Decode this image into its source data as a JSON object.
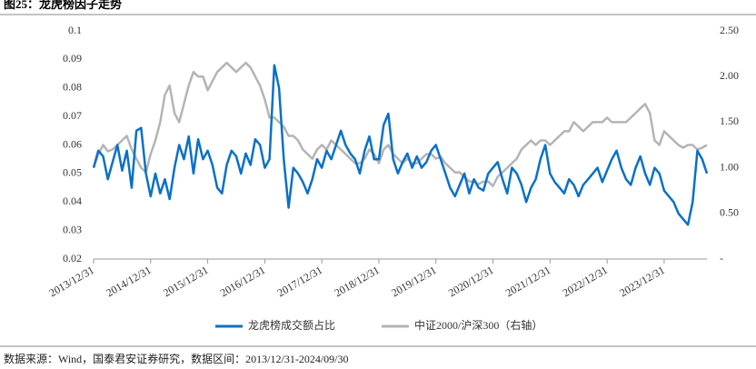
{
  "title": "图25：龙虎榜因子走势",
  "source": "数据来源：Wind，国泰君安证券研究，数据区间：2013/12/31-2024/09/30",
  "chart_data": {
    "type": "line",
    "x": [
      2014,
      2014.083,
      2014.167,
      2014.25,
      2014.333,
      2014.417,
      2014.5,
      2014.583,
      2014.667,
      2014.75,
      2014.833,
      2014.917,
      2015,
      2015.083,
      2015.167,
      2015.25,
      2015.333,
      2015.417,
      2015.5,
      2015.583,
      2015.667,
      2015.75,
      2015.833,
      2015.917,
      2016,
      2016.083,
      2016.167,
      2016.25,
      2016.333,
      2016.417,
      2016.5,
      2016.583,
      2016.667,
      2016.75,
      2016.833,
      2016.917,
      2017,
      2017.083,
      2017.167,
      2017.25,
      2017.333,
      2017.417,
      2017.5,
      2017.583,
      2017.667,
      2017.75,
      2017.833,
      2017.917,
      2018,
      2018.083,
      2018.167,
      2018.25,
      2018.333,
      2018.417,
      2018.5,
      2018.583,
      2018.667,
      2018.75,
      2018.833,
      2018.917,
      2019,
      2019.083,
      2019.167,
      2019.25,
      2019.333,
      2019.417,
      2019.5,
      2019.583,
      2019.667,
      2019.75,
      2019.833,
      2019.917,
      2020,
      2020.083,
      2020.167,
      2020.25,
      2020.333,
      2020.417,
      2020.5,
      2020.583,
      2020.667,
      2020.75,
      2020.833,
      2020.917,
      2021,
      2021.083,
      2021.167,
      2021.25,
      2021.333,
      2021.417,
      2021.5,
      2021.583,
      2021.667,
      2021.75,
      2021.833,
      2021.917,
      2022,
      2022.083,
      2022.167,
      2022.25,
      2022.333,
      2022.417,
      2022.5,
      2022.583,
      2022.667,
      2022.75,
      2022.833,
      2022.917,
      2023,
      2023.083,
      2023.167,
      2023.25,
      2023.333,
      2023.417,
      2023.5,
      2023.583,
      2023.667,
      2023.75,
      2023.833,
      2023.917,
      2024,
      2024.083,
      2024.167,
      2024.25,
      2024.333,
      2024.417,
      2024.5,
      2024.583,
      2024.667,
      2024.75
    ],
    "xlim": [
      2014,
      2024.75
    ],
    "xticks": [
      {
        "value": 2014,
        "label": "2013/12/31"
      },
      {
        "value": 2015,
        "label": "2014/12/31"
      },
      {
        "value": 2016,
        "label": "2015/12/31"
      },
      {
        "value": 2017,
        "label": "2016/12/31"
      },
      {
        "value": 2018,
        "label": "2017/12/31"
      },
      {
        "value": 2019,
        "label": "2018/12/31"
      },
      {
        "value": 2020,
        "label": "2019/12/31"
      },
      {
        "value": 2021,
        "label": "2020/12/31"
      },
      {
        "value": 2022,
        "label": "2021/12/31"
      },
      {
        "value": 2023,
        "label": "2022/12/31"
      },
      {
        "value": 2024,
        "label": "2023/12/31"
      }
    ],
    "ylim": [
      0.02,
      0.1
    ],
    "yticks": [
      0.02,
      0.03,
      0.04,
      0.05,
      0.06,
      0.07,
      0.08,
      0.09,
      0.1
    ],
    "y2lim": [
      0,
      2.5
    ],
    "y2ticks": [
      {
        "value": 0,
        "label": "-"
      },
      {
        "value": 0.5,
        "label": "0.50"
      },
      {
        "value": 1,
        "label": "1.00"
      },
      {
        "value": 1.5,
        "label": "1.50"
      },
      {
        "value": 2,
        "label": "2.00"
      },
      {
        "value": 2.5,
        "label": "2.50"
      }
    ],
    "series": [
      {
        "name": "龙虎榜成交额占比",
        "color": "#0a70c8",
        "values": [
          0.052,
          0.058,
          0.056,
          0.048,
          0.054,
          0.06,
          0.051,
          0.058,
          0.045,
          0.065,
          0.066,
          0.05,
          0.042,
          0.05,
          0.043,
          0.048,
          0.041,
          0.052,
          0.06,
          0.055,
          0.063,
          0.05,
          0.062,
          0.055,
          0.058,
          0.053,
          0.045,
          0.043,
          0.053,
          0.058,
          0.056,
          0.05,
          0.057,
          0.053,
          0.062,
          0.06,
          0.052,
          0.055,
          0.088,
          0.08,
          0.055,
          0.038,
          0.052,
          0.05,
          0.047,
          0.043,
          0.048,
          0.055,
          0.052,
          0.058,
          0.055,
          0.06,
          0.065,
          0.06,
          0.057,
          0.055,
          0.05,
          0.058,
          0.063,
          0.055,
          0.055,
          0.067,
          0.071,
          0.055,
          0.05,
          0.054,
          0.057,
          0.052,
          0.056,
          0.052,
          0.054,
          0.058,
          0.06,
          0.055,
          0.05,
          0.045,
          0.042,
          0.046,
          0.05,
          0.043,
          0.048,
          0.045,
          0.044,
          0.05,
          0.052,
          0.054,
          0.048,
          0.043,
          0.052,
          0.05,
          0.046,
          0.04,
          0.045,
          0.048,
          0.055,
          0.06,
          0.05,
          0.047,
          0.045,
          0.043,
          0.048,
          0.046,
          0.042,
          0.046,
          0.048,
          0.05,
          0.052,
          0.047,
          0.051,
          0.055,
          0.058,
          0.052,
          0.048,
          0.046,
          0.052,
          0.056,
          0.05,
          0.046,
          0.052,
          0.05,
          0.044,
          0.042,
          0.04,
          0.036,
          0.034,
          0.032,
          0.04,
          0.058,
          0.055,
          0.05
        ]
      },
      {
        "name": "中证2000/沪深300（右轴）",
        "color": "#b4b4b4",
        "axis": "y2",
        "values": [
          1.0,
          1.15,
          1.25,
          1.18,
          1.2,
          1.25,
          1.3,
          1.35,
          1.2,
          1.1,
          1.0,
          0.95,
          1.15,
          1.3,
          1.5,
          1.8,
          1.9,
          1.6,
          1.5,
          1.7,
          1.9,
          2.05,
          2.0,
          2.0,
          1.85,
          1.95,
          2.05,
          2.1,
          2.15,
          2.1,
          2.05,
          2.1,
          2.15,
          2.1,
          2.0,
          1.9,
          1.75,
          1.55,
          1.55,
          1.5,
          1.45,
          1.35,
          1.35,
          1.3,
          1.2,
          1.15,
          1.1,
          1.2,
          1.25,
          1.2,
          1.3,
          1.25,
          1.2,
          1.15,
          1.1,
          1.05,
          1.05,
          1.1,
          1.2,
          1.15,
          1.05,
          1.2,
          1.25,
          1.15,
          1.1,
          1.05,
          1.1,
          1.05,
          1.05,
          1.1,
          1.15,
          1.15,
          1.1,
          1.12,
          1.05,
          1.0,
          0.95,
          0.95,
          0.9,
          0.85,
          0.85,
          0.82,
          0.85,
          0.85,
          0.8,
          0.9,
          0.95,
          1.0,
          1.05,
          1.1,
          1.2,
          1.25,
          1.3,
          1.25,
          1.3,
          1.3,
          1.25,
          1.3,
          1.35,
          1.4,
          1.4,
          1.5,
          1.45,
          1.4,
          1.45,
          1.5,
          1.5,
          1.5,
          1.55,
          1.5,
          1.5,
          1.5,
          1.5,
          1.55,
          1.6,
          1.65,
          1.7,
          1.6,
          1.3,
          1.25,
          1.4,
          1.35,
          1.3,
          1.25,
          1.22,
          1.25,
          1.25,
          1.2,
          1.22,
          1.25
        ]
      }
    ]
  }
}
